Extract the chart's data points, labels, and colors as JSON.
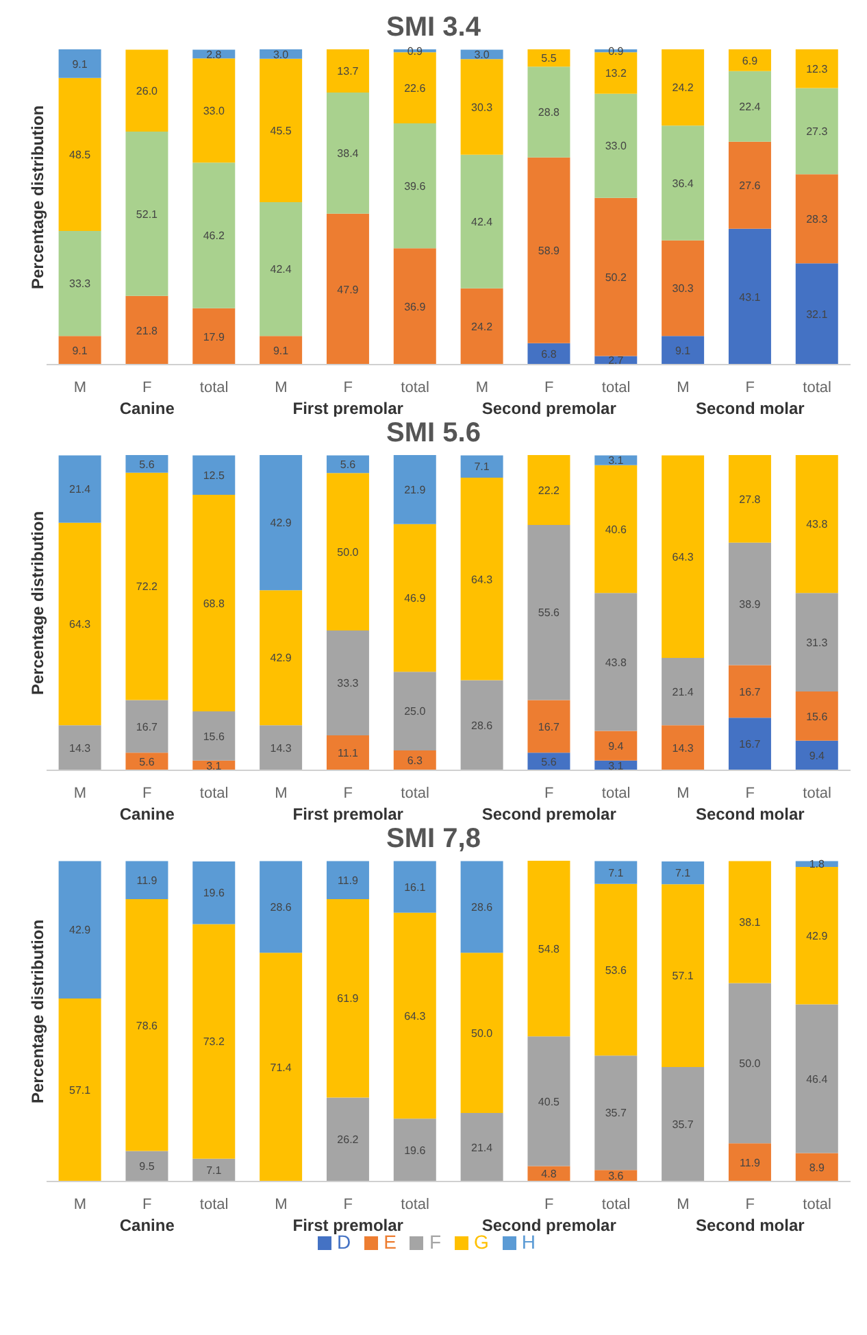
{
  "chart_data": [
    {
      "type": "bar",
      "title": "SMI 3.4",
      "ylabel": "Percentage distribution",
      "categories": [
        "M",
        "F",
        "total",
        "M",
        "F",
        "total",
        "M",
        "F",
        "total",
        "M",
        "F",
        "total"
      ],
      "annotations": [
        "Canine",
        "First premolar",
        "Second premolar",
        "Second molar"
      ],
      "stacked": true,
      "tick_labels": "x",
      "series": [
        {
          "color": "#4472c4",
          "values": [
            null,
            null,
            null,
            null,
            null,
            null,
            null,
            6.8,
            2.7,
            9.1,
            43.1,
            32.1
          ],
          "value_labels": [
            null,
            null,
            null,
            null,
            null,
            null,
            null,
            "6.8",
            "2.7",
            "9.1",
            "43.1",
            "32.1"
          ]
        },
        {
          "color": "#ed7d31",
          "values": [
            9.1,
            21.8,
            17.9,
            9.1,
            47.9,
            36.9,
            24.2,
            58.9,
            50.2,
            30.3,
            27.6,
            28.3
          ],
          "value_labels": [
            "9.1",
            "21.8",
            "17.9",
            "9.1",
            "47.9",
            "36.9",
            "24.2",
            "58.9",
            "50.2",
            "30.3",
            "27.6",
            "28.3"
          ]
        },
        {
          "color": "#a9d18e",
          "values": [
            33.3,
            52.1,
            46.2,
            42.4,
            38.4,
            39.6,
            42.4,
            28.8,
            33.0,
            36.4,
            22.4,
            27.3
          ],
          "value_labels": [
            "33.3",
            "52.1",
            "46.2",
            "42.4",
            "38.4",
            "39.6",
            "42.4",
            "28.8",
            "33.0",
            "36.4",
            "22.4",
            "27.3"
          ]
        },
        {
          "color": "#ffc000",
          "values": [
            48.5,
            26.0,
            33.0,
            45.5,
            13.7,
            22.6,
            30.3,
            5.5,
            13.2,
            24.2,
            6.9,
            12.3
          ],
          "value_labels": [
            "48.5",
            "26.0",
            "33.0",
            "45.5",
            "13.7",
            "22.6",
            "30.3",
            "5.5",
            "13.2",
            "24.2",
            "6.9",
            "12.3"
          ]
        },
        {
          "color": "#5b9bd5",
          "values": [
            9.1,
            null,
            2.8,
            3.0,
            null,
            0.9,
            3.0,
            null,
            0.9,
            null,
            null,
            null
          ],
          "value_labels": [
            "9.1",
            null,
            "2.8",
            "3.0",
            null,
            "0.9",
            "3.0",
            null,
            "0.9",
            null,
            null,
            null
          ]
        }
      ]
    },
    {
      "type": "bar",
      "title": "SMI 5.6",
      "ylabel": "Percentage distribution",
      "categories": [
        "M",
        "F",
        "total",
        "M",
        "F",
        "total",
        null,
        "F",
        "total",
        "M",
        "F",
        "total"
      ],
      "annotations": [
        "Canine",
        "First premolar",
        "Second premolar",
        "Second molar"
      ],
      "stacked": true,
      "tick_labels": "x",
      "series": [
        {
          "color": "#4472c4",
          "values": [
            null,
            null,
            null,
            null,
            null,
            null,
            null,
            5.6,
            3.1,
            null,
            16.7,
            9.4
          ],
          "value_labels": [
            null,
            null,
            null,
            null,
            null,
            null,
            null,
            "5.6",
            "3.1",
            null,
            "16.7",
            "9.4"
          ]
        },
        {
          "color": "#ed7d31",
          "values": [
            null,
            5.6,
            3.1,
            null,
            11.1,
            6.3,
            null,
            16.7,
            9.4,
            14.3,
            16.7,
            15.6
          ],
          "value_labels": [
            null,
            "5.6",
            "3.1",
            null,
            "11.1",
            "6.3",
            null,
            "16.7",
            "9.4",
            "14.3",
            "16.7",
            "15.6"
          ]
        },
        {
          "color": "#a5a5a5",
          "values": [
            14.3,
            16.7,
            15.6,
            14.3,
            33.3,
            25.0,
            28.6,
            55.6,
            43.8,
            21.4,
            38.9,
            31.3
          ],
          "value_labels": [
            "14.3",
            "16.7",
            "15.6",
            "14.3",
            "33.3",
            "25.0",
            "28.6",
            "55.6",
            "43.8",
            "21.4",
            "38.9",
            "31.3"
          ]
        },
        {
          "color": "#ffc000",
          "values": [
            64.3,
            72.2,
            68.8,
            42.9,
            50.0,
            46.9,
            64.3,
            22.2,
            40.6,
            64.3,
            27.8,
            43.8
          ],
          "value_labels": [
            "64.3",
            "72.2",
            "68.8",
            "42.9",
            "50.0",
            "46.9",
            "64.3",
            "22.2",
            "40.6",
            "64.3",
            "27.8",
            "43.8"
          ]
        },
        {
          "color": "#5b9bd5",
          "values": [
            21.4,
            5.6,
            12.5,
            42.9,
            5.6,
            21.9,
            7.1,
            null,
            3.1,
            null,
            null,
            null
          ],
          "value_labels": [
            "21.4",
            "5.6",
            "12.5",
            "42.9",
            "5.6",
            "21.9",
            "7.1",
            null,
            "3.1",
            null,
            null,
            null
          ]
        }
      ]
    },
    {
      "type": "bar",
      "title": "SMI 7,8",
      "ylabel": "Percentage distribution",
      "categories": [
        "M",
        "F",
        "total",
        "M",
        "F",
        "total",
        null,
        "F",
        "total",
        "M",
        "F",
        "total"
      ],
      "annotations": [
        "Canine",
        "First premolar",
        "Second premolar",
        "Second molar"
      ],
      "stacked": true,
      "tick_labels": "x",
      "legend": "bottom",
      "series": [
        {
          "name": "D",
          "color": "#4472c4",
          "values": [
            null,
            null,
            null,
            null,
            null,
            null,
            null,
            null,
            null,
            null,
            null,
            null
          ],
          "value_labels": [
            null,
            null,
            null,
            null,
            null,
            null,
            null,
            null,
            null,
            null,
            null,
            null
          ]
        },
        {
          "name": "E",
          "color": "#ed7d31",
          "values": [
            null,
            null,
            null,
            null,
            null,
            null,
            null,
            4.8,
            3.6,
            null,
            11.9,
            8.9
          ],
          "value_labels": [
            null,
            null,
            null,
            null,
            null,
            null,
            null,
            "4.8",
            "3.6",
            null,
            "11.9",
            "8.9"
          ]
        },
        {
          "name": "F",
          "color": "#a5a5a5",
          "values": [
            null,
            9.5,
            7.1,
            null,
            26.2,
            19.6,
            21.4,
            40.5,
            35.7,
            35.7,
            50.0,
            46.4
          ],
          "value_labels": [
            null,
            "9.5",
            "7.1",
            null,
            "26.2",
            "19.6",
            "21.4",
            "40.5",
            "35.7",
            "35.7",
            "50.0",
            "46.4"
          ]
        },
        {
          "name": "G",
          "color": "#ffc000",
          "values": [
            57.1,
            78.6,
            73.2,
            71.4,
            61.9,
            64.3,
            50.0,
            54.8,
            53.6,
            57.1,
            38.1,
            42.9
          ],
          "value_labels": [
            "57.1",
            "78.6",
            "73.2",
            "71.4",
            "61.9",
            "64.3",
            "50.0",
            "54.8",
            "53.6",
            "57.1",
            "38.1",
            "42.9"
          ]
        },
        {
          "name": "H",
          "color": "#5b9bd5",
          "values": [
            42.9,
            11.9,
            19.6,
            28.6,
            11.9,
            16.1,
            28.6,
            null,
            7.1,
            7.1,
            null,
            1.8
          ],
          "value_labels": [
            "42.9",
            "11.9",
            "19.6",
            "28.6",
            "11.9",
            "16.1",
            "28.6",
            null,
            "7.1",
            "7.1",
            null,
            "1.8"
          ]
        }
      ]
    }
  ]
}
